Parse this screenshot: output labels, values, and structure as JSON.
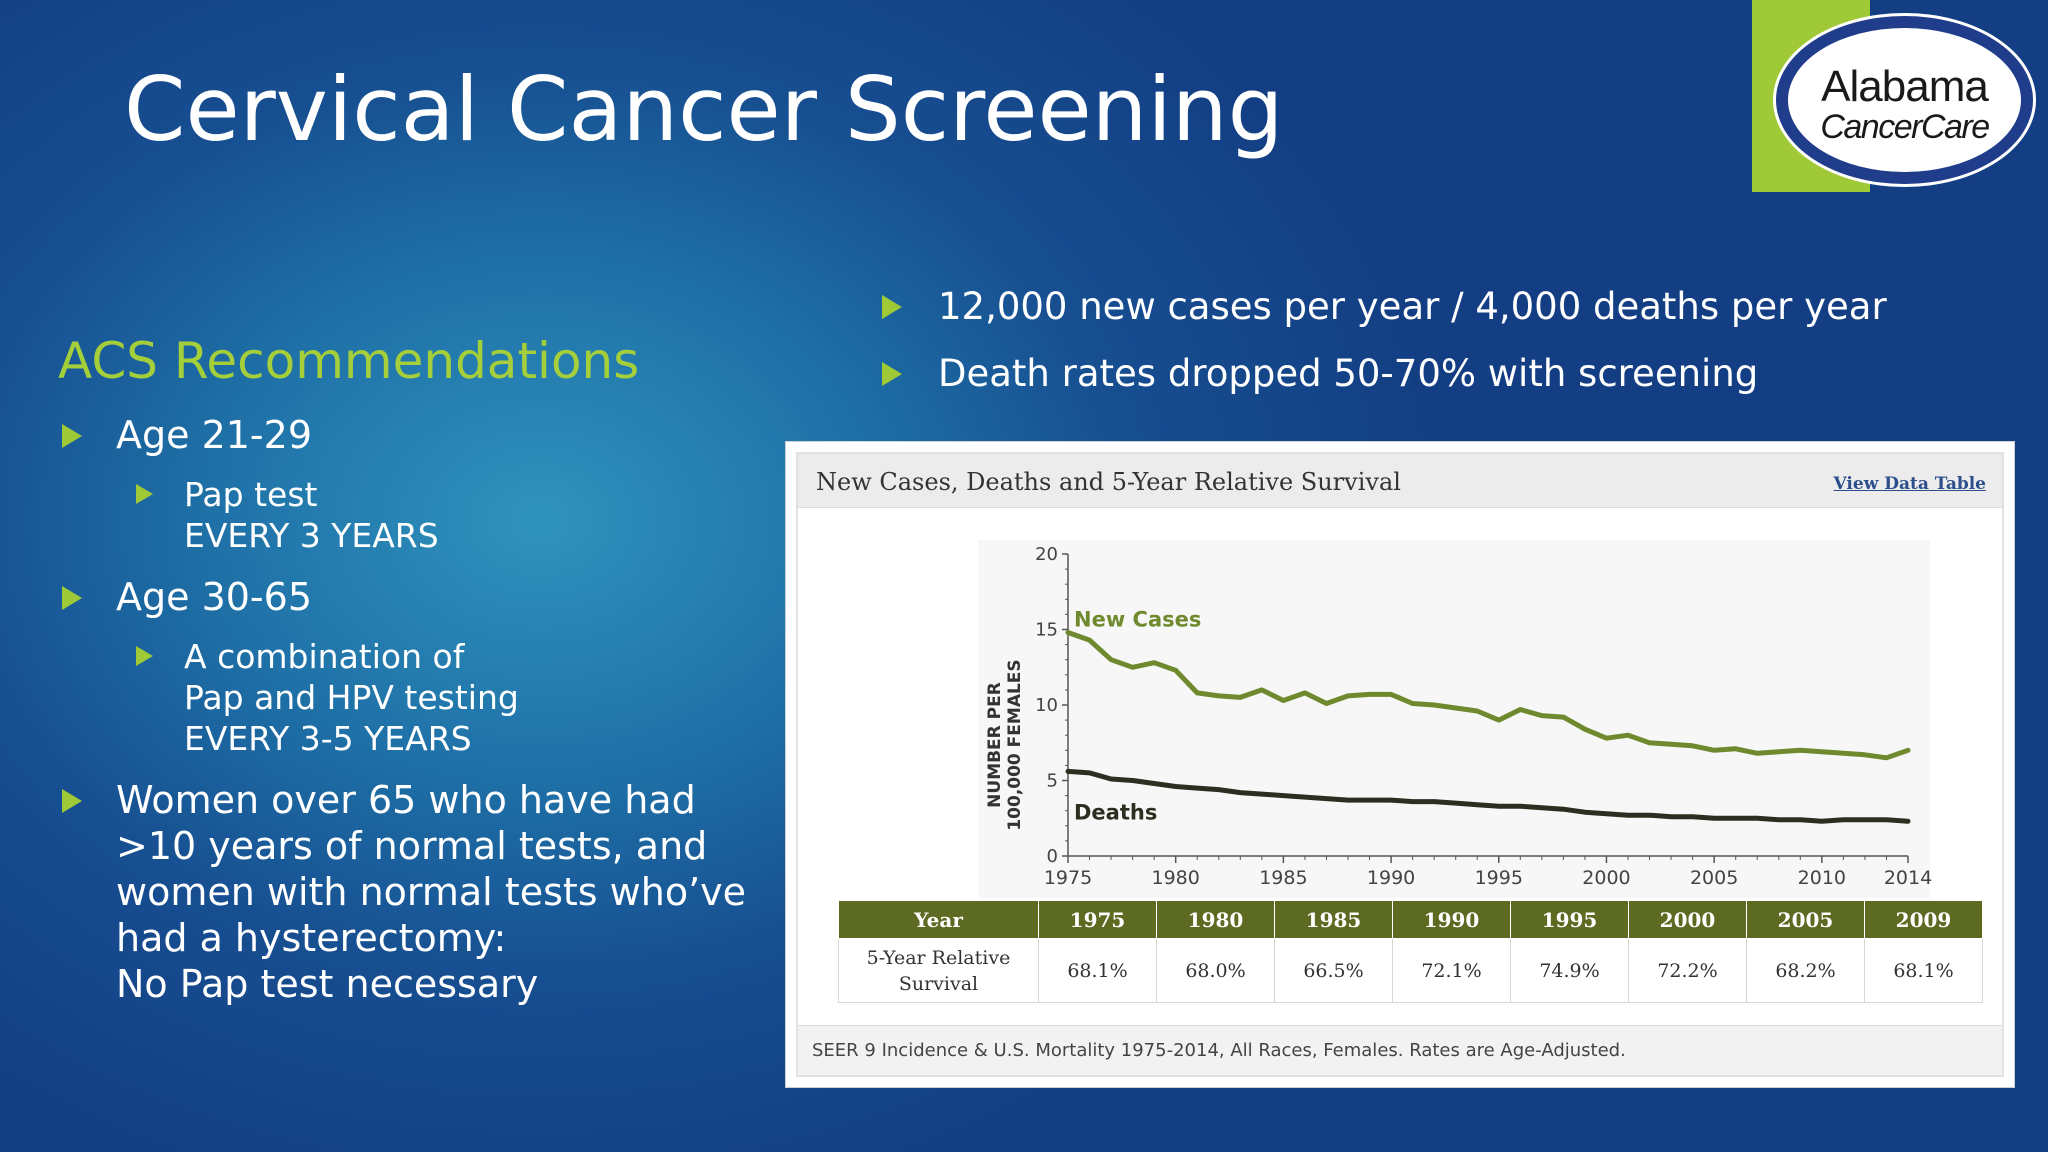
{
  "slide": {
    "title": "Cervical Cancer Screening",
    "logo": {
      "line1": "Alabama",
      "line2": "CancerCare"
    }
  },
  "left": {
    "heading": "ACS Recommendations",
    "bullets": [
      {
        "text": "Age 21-29",
        "sub": [
          "Pap test",
          "EVERY 3 YEARS"
        ]
      },
      {
        "text": "Age 30-65",
        "sub": [
          "A combination of",
          "Pap and HPV testing",
          "EVERY 3-5 YEARS"
        ]
      },
      {
        "lines": [
          "Women over 65 who have had",
          ">10 years of normal tests, and",
          "women with normal tests who’ve",
          "had a hysterectomy:",
          "No Pap test necessary"
        ]
      }
    ]
  },
  "right": {
    "bullets": [
      "12,000 new cases per year / 4,000 deaths per year",
      "Death rates dropped 50-70% with screening"
    ]
  },
  "chart_panel": {
    "title": "New Cases, Deaths and 5-Year Relative Survival",
    "link": "View Data Table",
    "source": "SEER 9 Incidence & U.S. Mortality 1975-2014, All Races, Females. Rates are Age-Adjusted."
  },
  "chart_data": {
    "type": "line",
    "ylabel_line1": "NUMBER PER",
    "ylabel_line2": "100,000 FEMALES",
    "xlim": [
      1975,
      2014
    ],
    "ylim": [
      0,
      20
    ],
    "x_ticks": [
      1975,
      1980,
      1985,
      1990,
      1995,
      2000,
      2005,
      2010,
      2014
    ],
    "y_ticks": [
      0,
      5,
      10,
      15,
      20
    ],
    "colors": {
      "new_cases": "#6f8a2e",
      "deaths": "#2b2f1f"
    },
    "x": [
      1975,
      1976,
      1977,
      1978,
      1979,
      1980,
      1981,
      1982,
      1983,
      1984,
      1985,
      1986,
      1987,
      1988,
      1989,
      1990,
      1991,
      1992,
      1993,
      1994,
      1995,
      1996,
      1997,
      1998,
      1999,
      2000,
      2001,
      2002,
      2003,
      2004,
      2005,
      2006,
      2007,
      2008,
      2009,
      2010,
      2011,
      2012,
      2013,
      2014
    ],
    "series": [
      {
        "name": "New Cases",
        "values": [
          14.8,
          14.3,
          13.0,
          12.5,
          12.8,
          12.3,
          10.8,
          10.6,
          10.5,
          11.0,
          10.3,
          10.8,
          10.1,
          10.6,
          10.7,
          10.7,
          10.1,
          10.0,
          9.8,
          9.6,
          9.0,
          9.7,
          9.3,
          9.2,
          8.4,
          7.8,
          8.0,
          7.5,
          7.4,
          7.3,
          7.0,
          7.1,
          6.8,
          6.9,
          7.0,
          6.9,
          6.8,
          6.7,
          6.5,
          7.0
        ]
      },
      {
        "name": "Deaths",
        "values": [
          5.6,
          5.5,
          5.1,
          5.0,
          4.8,
          4.6,
          4.5,
          4.4,
          4.2,
          4.1,
          4.0,
          3.9,
          3.8,
          3.7,
          3.7,
          3.7,
          3.6,
          3.6,
          3.5,
          3.4,
          3.3,
          3.3,
          3.2,
          3.1,
          2.9,
          2.8,
          2.7,
          2.7,
          2.6,
          2.6,
          2.5,
          2.5,
          2.5,
          2.4,
          2.4,
          2.3,
          2.4,
          2.4,
          2.4,
          2.3
        ]
      }
    ],
    "table": {
      "header_label": "Year",
      "years": [
        "1975",
        "1980",
        "1985",
        "1990",
        "1995",
        "2000",
        "2005",
        "2009"
      ],
      "row_label_line1": "5-Year Relative",
      "row_label_line2": "Survival",
      "values": [
        "68.1%",
        "68.0%",
        "66.5%",
        "72.1%",
        "74.9%",
        "72.2%",
        "68.2%",
        "68.1%"
      ]
    }
  }
}
